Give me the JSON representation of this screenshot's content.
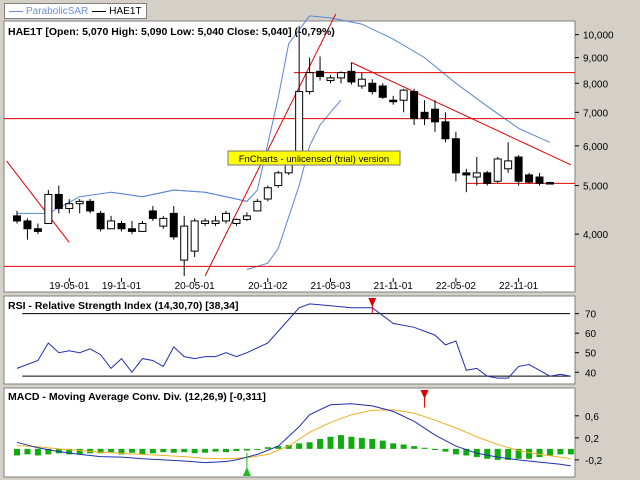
{
  "legend": [
    {
      "label": "ParabolicSAR",
      "color": "#6a8fd8"
    },
    {
      "label": "HAE1T",
      "color": "#000000"
    }
  ],
  "watermark": "FnCharts - unlicensed (trial) version",
  "colors": {
    "candle_up": "#ffffff",
    "candle_down": "#000000",
    "trend": "#e00000",
    "bands": "#5b84d6",
    "rsi": "#1f2fb0",
    "macd": "#1f2fb0",
    "signal": "#f0b020",
    "hist": "#11aa11",
    "marker_red": "#e00000",
    "marker_green": "#22bb22",
    "watermark_bg": "#ffff00"
  },
  "chart_data": [
    {
      "type": "candlestick",
      "title": "HAE1T [Open: 5,070  High: 5,090  Low: 5,040  Close: 5,040] (-0,79%)",
      "y_scale": "log",
      "ylim": [
        3.3,
        10.6
      ],
      "y_ticks": [
        {
          "v": 4,
          "label": "4,000"
        },
        {
          "v": 5,
          "label": "5,000"
        },
        {
          "v": 6,
          "label": "6,000"
        },
        {
          "v": 7,
          "label": "7,000"
        },
        {
          "v": 8,
          "label": "8,000"
        },
        {
          "v": 9,
          "label": "9,000"
        },
        {
          "v": 10,
          "label": "10,000"
        }
      ],
      "x_ticks": [
        {
          "i": 5,
          "label": "19-05-01"
        },
        {
          "i": 10,
          "label": "19-11-01"
        },
        {
          "i": 17,
          "label": "20-05-01"
        },
        {
          "i": 24,
          "label": "20-11-02"
        },
        {
          "i": 30,
          "label": "21-05-03"
        },
        {
          "i": 36,
          "label": "21-11-01"
        },
        {
          "i": 42,
          "label": "22-05-02"
        },
        {
          "i": 48,
          "label": "22-11-01"
        }
      ],
      "candles": [
        {
          "o": 4.35,
          "h": 4.45,
          "l": 4.2,
          "c": 4.25
        },
        {
          "o": 4.25,
          "h": 4.3,
          "l": 3.9,
          "c": 4.1
        },
        {
          "o": 4.1,
          "h": 4.2,
          "l": 4.0,
          "c": 4.05
        },
        {
          "o": 4.2,
          "h": 4.9,
          "l": 4.2,
          "c": 4.8
        },
        {
          "o": 4.8,
          "h": 5.0,
          "l": 4.4,
          "c": 4.5
        },
        {
          "o": 4.5,
          "h": 4.7,
          "l": 4.4,
          "c": 4.6
        },
        {
          "o": 4.6,
          "h": 4.7,
          "l": 4.4,
          "c": 4.65
        },
        {
          "o": 4.65,
          "h": 4.7,
          "l": 4.4,
          "c": 4.45
        },
        {
          "o": 4.4,
          "h": 4.45,
          "l": 4.05,
          "c": 4.1
        },
        {
          "o": 4.1,
          "h": 4.35,
          "l": 4.1,
          "c": 4.25
        },
        {
          "o": 4.2,
          "h": 4.25,
          "l": 4.05,
          "c": 4.1
        },
        {
          "o": 4.1,
          "h": 4.25,
          "l": 4.0,
          "c": 4.05
        },
        {
          "o": 4.05,
          "h": 4.25,
          "l": 4.05,
          "c": 4.2
        },
        {
          "o": 4.45,
          "h": 4.55,
          "l": 4.25,
          "c": 4.3
        },
        {
          "o": 4.15,
          "h": 4.35,
          "l": 4.1,
          "c": 4.3
        },
        {
          "o": 4.4,
          "h": 4.55,
          "l": 3.9,
          "c": 3.95
        },
        {
          "o": 3.55,
          "h": 4.35,
          "l": 3.3,
          "c": 4.15
        },
        {
          "o": 3.7,
          "h": 4.3,
          "l": 3.6,
          "c": 4.25
        },
        {
          "o": 4.2,
          "h": 4.3,
          "l": 4.15,
          "c": 4.25
        },
        {
          "o": 4.2,
          "h": 4.35,
          "l": 4.15,
          "c": 4.25
        },
        {
          "o": 4.25,
          "h": 4.45,
          "l": 4.2,
          "c": 4.4
        },
        {
          "o": 4.2,
          "h": 4.3,
          "l": 4.15,
          "c": 4.28
        },
        {
          "o": 4.28,
          "h": 4.42,
          "l": 4.25,
          "c": 4.35
        },
        {
          "o": 4.45,
          "h": 4.7,
          "l": 4.45,
          "c": 4.65
        },
        {
          "o": 4.7,
          "h": 5.0,
          "l": 4.65,
          "c": 4.95
        },
        {
          "o": 5.0,
          "h": 5.35,
          "l": 4.95,
          "c": 5.3
        },
        {
          "o": 5.3,
          "h": 5.8,
          "l": 5.25,
          "c": 5.75
        },
        {
          "o": 5.8,
          "h": 10.4,
          "l": 5.8,
          "c": 7.7
        },
        {
          "o": 7.7,
          "h": 9.0,
          "l": 7.6,
          "c": 8.4
        },
        {
          "o": 8.45,
          "h": 9.05,
          "l": 8.1,
          "c": 8.25
        },
        {
          "o": 8.1,
          "h": 8.3,
          "l": 8.0,
          "c": 8.2
        },
        {
          "o": 8.2,
          "h": 8.45,
          "l": 8.0,
          "c": 8.4
        },
        {
          "o": 8.45,
          "h": 8.8,
          "l": 7.95,
          "c": 8.05
        },
        {
          "o": 7.9,
          "h": 8.4,
          "l": 7.8,
          "c": 8.15
        },
        {
          "o": 8.0,
          "h": 8.15,
          "l": 7.6,
          "c": 7.7
        },
        {
          "o": 7.9,
          "h": 8.0,
          "l": 7.45,
          "c": 7.5
        },
        {
          "o": 7.4,
          "h": 7.55,
          "l": 7.25,
          "c": 7.35
        },
        {
          "o": 7.4,
          "h": 7.8,
          "l": 7.0,
          "c": 7.75
        },
        {
          "o": 7.7,
          "h": 7.8,
          "l": 6.6,
          "c": 6.8
        },
        {
          "o": 7.0,
          "h": 7.4,
          "l": 6.6,
          "c": 6.8
        },
        {
          "o": 7.1,
          "h": 7.4,
          "l": 6.4,
          "c": 6.7
        },
        {
          "o": 6.7,
          "h": 7.0,
          "l": 6.1,
          "c": 6.2
        },
        {
          "o": 6.2,
          "h": 6.4,
          "l": 5.1,
          "c": 5.3
        },
        {
          "o": 5.3,
          "h": 5.4,
          "l": 4.85,
          "c": 5.25
        },
        {
          "o": 5.2,
          "h": 5.7,
          "l": 5.0,
          "c": 5.3
        },
        {
          "o": 5.3,
          "h": 5.35,
          "l": 5.0,
          "c": 5.05
        },
        {
          "o": 5.1,
          "h": 5.7,
          "l": 5.05,
          "c": 5.65
        },
        {
          "o": 5.4,
          "h": 6.1,
          "l": 5.3,
          "c": 5.6
        },
        {
          "o": 5.7,
          "h": 5.75,
          "l": 5.0,
          "c": 5.1
        },
        {
          "o": 5.25,
          "h": 5.3,
          "l": 5.05,
          "c": 5.08
        },
        {
          "o": 5.2,
          "h": 5.3,
          "l": 5.0,
          "c": 5.05
        },
        {
          "o": 5.07,
          "h": 5.09,
          "l": 5.04,
          "c": 5.04
        }
      ],
      "band_upper": [
        [
          9,
          4.85
        ],
        [
          12,
          4.75
        ],
        [
          15,
          4.9
        ],
        [
          18,
          4.85
        ],
        [
          21,
          4.7
        ],
        [
          22,
          4.65
        ],
        [
          23,
          4.9
        ],
        [
          25,
          7.5
        ],
        [
          26,
          9.6
        ],
        [
          28,
          10.9
        ],
        [
          30,
          10.8
        ],
        [
          33,
          10.5
        ],
        [
          36,
          9.8
        ],
        [
          39,
          9.0
        ],
        [
          42,
          8.0
        ],
        [
          45,
          7.2
        ],
        [
          48,
          6.5
        ],
        [
          51,
          6.1
        ]
      ],
      "band_lower": [
        [
          0,
          4.4
        ],
        [
          3,
          4.4
        ],
        [
          6,
          4.75
        ],
        [
          9,
          4.85
        ],
        [
          12,
          4.75
        ],
        [
          15,
          4.9
        ],
        [
          18,
          4.85
        ],
        [
          21,
          4.7
        ],
        [
          22,
          4.65
        ]
      ],
      "band_lower_2": [
        [
          22,
          3.4
        ],
        [
          24,
          3.5
        ],
        [
          25,
          3.75
        ],
        [
          27,
          5.0
        ],
        [
          28,
          6.0
        ],
        [
          29,
          6.6
        ],
        [
          30,
          7.0
        ],
        [
          31,
          7.4
        ]
      ],
      "resistance_lines": [
        8.4,
        6.8,
        3.45
      ],
      "support_line": {
        "from_i": 43,
        "to_i": 53,
        "value": 5.05
      },
      "trendlines": [
        {
          "from": [
            -1.0,
            5.6
          ],
          "to": [
            5.0,
            3.85
          ]
        },
        {
          "from": [
            18.0,
            3.3
          ],
          "to": [
            30.5,
            11.0
          ]
        },
        {
          "from": [
            32.0,
            8.8
          ],
          "to": [
            53.0,
            5.5
          ]
        }
      ]
    },
    {
      "type": "line",
      "title": "RSI - Relative Strength Index (14,30,70) [38,34]",
      "ylim": [
        34,
        78
      ],
      "y_ticks": [
        {
          "v": 70,
          "label": "70"
        },
        {
          "v": 60,
          "label": "60"
        },
        {
          "v": 50,
          "label": "50"
        },
        {
          "v": 40,
          "label": "40"
        }
      ],
      "threshold_lines": [
        70,
        38
      ],
      "values": [
        [
          0,
          42
        ],
        [
          2,
          46
        ],
        [
          3,
          55
        ],
        [
          4,
          50
        ],
        [
          5,
          51
        ],
        [
          6,
          50
        ],
        [
          7,
          52
        ],
        [
          8,
          49
        ],
        [
          9,
          42
        ],
        [
          10,
          47
        ],
        [
          11,
          40
        ],
        [
          12,
          47
        ],
        [
          13,
          46
        ],
        [
          14,
          43
        ],
        [
          15,
          53
        ],
        [
          16,
          48
        ],
        [
          17,
          47
        ],
        [
          18,
          48
        ],
        [
          19,
          48
        ],
        [
          20,
          50
        ],
        [
          21,
          48
        ],
        [
          22,
          50
        ],
        [
          24,
          55
        ],
        [
          26,
          67
        ],
        [
          27,
          73
        ],
        [
          28,
          75
        ],
        [
          30,
          74
        ],
        [
          32,
          73
        ],
        [
          34,
          73
        ],
        [
          36,
          65
        ],
        [
          38,
          63
        ],
        [
          40,
          59
        ],
        [
          41,
          54
        ],
        [
          42,
          56
        ],
        [
          43,
          41
        ],
        [
          44,
          42
        ],
        [
          45,
          38
        ],
        [
          46,
          37
        ],
        [
          47,
          37
        ],
        [
          48,
          43
        ],
        [
          49,
          44
        ],
        [
          50,
          41
        ],
        [
          51,
          38
        ],
        [
          52,
          39
        ],
        [
          53,
          38
        ]
      ],
      "markers": [
        {
          "i": 34,
          "color": "red"
        }
      ]
    },
    {
      "type": "line",
      "title": "MACD - Moving Average Conv. Div. (12,26,9) [-0,311]",
      "ylim": [
        -0.42,
        0.96
      ],
      "y_ticks": [
        {
          "v": 0.6,
          "label": "0,6"
        },
        {
          "v": 0.2,
          "label": "0,2"
        },
        {
          "v": -0.2,
          "label": "-0,2"
        }
      ],
      "macd": [
        [
          0,
          0.12
        ],
        [
          2,
          0.02
        ],
        [
          4,
          -0.05
        ],
        [
          6,
          -0.1
        ],
        [
          8,
          -0.14
        ],
        [
          10,
          -0.15
        ],
        [
          12,
          -0.18
        ],
        [
          14,
          -0.2
        ],
        [
          16,
          -0.22
        ],
        [
          18,
          -0.25
        ],
        [
          20,
          -0.23
        ],
        [
          21,
          -0.2
        ],
        [
          23,
          -0.1
        ],
        [
          25,
          0.05
        ],
        [
          27,
          0.4
        ],
        [
          28,
          0.62
        ],
        [
          30,
          0.8
        ],
        [
          32,
          0.82
        ],
        [
          34,
          0.78
        ],
        [
          36,
          0.68
        ],
        [
          38,
          0.5
        ],
        [
          40,
          0.25
        ],
        [
          42,
          0.05
        ],
        [
          44,
          -0.08
        ],
        [
          46,
          -0.15
        ],
        [
          48,
          -0.2
        ],
        [
          50,
          -0.24
        ],
        [
          52,
          -0.28
        ],
        [
          53,
          -0.31
        ]
      ],
      "signal": [
        [
          0,
          0.06
        ],
        [
          2,
          0.04
        ],
        [
          4,
          0.0
        ],
        [
          6,
          -0.03
        ],
        [
          8,
          -0.06
        ],
        [
          10,
          -0.08
        ],
        [
          12,
          -0.1
        ],
        [
          14,
          -0.12
        ],
        [
          16,
          -0.14
        ],
        [
          18,
          -0.17
        ],
        [
          20,
          -0.18
        ],
        [
          22,
          -0.16
        ],
        [
          24,
          -0.1
        ],
        [
          26,
          0.05
        ],
        [
          28,
          0.3
        ],
        [
          30,
          0.48
        ],
        [
          32,
          0.62
        ],
        [
          34,
          0.7
        ],
        [
          36,
          0.71
        ],
        [
          38,
          0.65
        ],
        [
          40,
          0.52
        ],
        [
          42,
          0.38
        ],
        [
          44,
          0.22
        ],
        [
          46,
          0.08
        ],
        [
          48,
          -0.03
        ],
        [
          50,
          -0.1
        ],
        [
          52,
          -0.15
        ],
        [
          53,
          -0.18
        ]
      ],
      "histogram": [
        -0.12,
        -0.1,
        -0.12,
        -0.1,
        -0.08,
        -0.1,
        -0.1,
        -0.08,
        -0.08,
        -0.06,
        -0.1,
        -0.07,
        -0.1,
        -0.08,
        -0.06,
        -0.07,
        -0.06,
        -0.08,
        -0.07,
        -0.05,
        -0.06,
        -0.04,
        -0.03,
        0.0,
        0.03,
        0.05,
        0.07,
        0.1,
        0.12,
        0.18,
        0.22,
        0.25,
        0.22,
        0.2,
        0.18,
        0.15,
        0.1,
        0.08,
        0.05,
        0.02,
        -0.02,
        -0.05,
        -0.1,
        -0.12,
        -0.15,
        -0.18,
        -0.2,
        -0.2,
        -0.18,
        -0.18,
        -0.15,
        -0.12,
        -0.1,
        -0.1
      ],
      "markers": [
        {
          "i": 22,
          "color": "green"
        },
        {
          "i": 39,
          "color": "red"
        }
      ]
    }
  ]
}
